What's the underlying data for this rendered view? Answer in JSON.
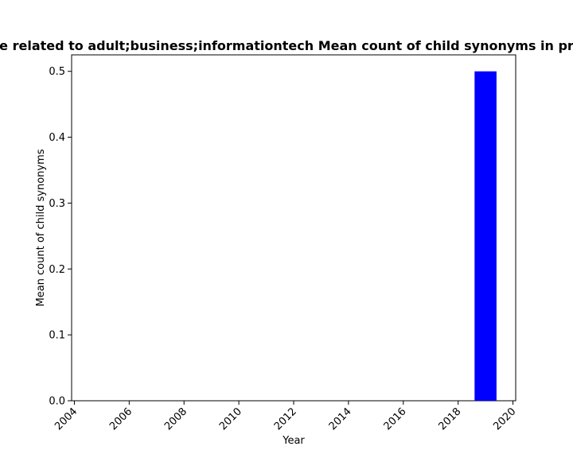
{
  "chart_data": {
    "type": "bar",
    "title": "e related to adult;business;informationtech Mean count of child synonyms in pr",
    "xlabel": "Year",
    "ylabel": "Mean count of child synonyms",
    "x": [
      2019
    ],
    "values": [
      0.5
    ],
    "xlim": [
      2003.9,
      2020.1
    ],
    "ylim": [
      0,
      0.525
    ],
    "xticks": [
      2004,
      2006,
      2008,
      2010,
      2012,
      2014,
      2016,
      2018,
      2020
    ],
    "yticks": [
      "0.0",
      "0.1",
      "0.2",
      "0.3",
      "0.4",
      "0.5"
    ],
    "bar_width": 0.8,
    "bar_color": "#0000ff",
    "grid": false,
    "legend": "none"
  }
}
